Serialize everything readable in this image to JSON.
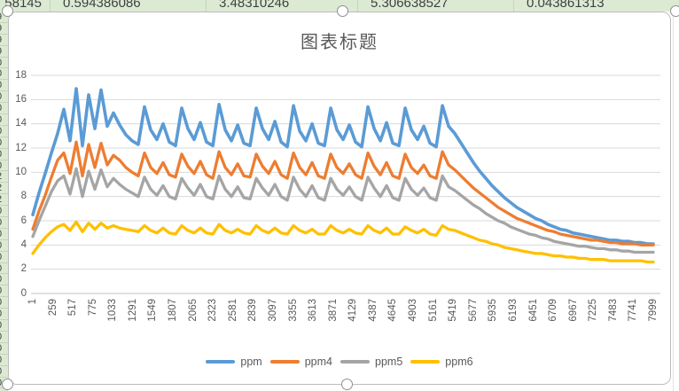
{
  "spreadsheet": {
    "top_row_cells": [
      "58145",
      "0.594386086",
      "3.48310246",
      "5.306638527",
      "0.043861313"
    ],
    "left_column_digits": [
      "9",
      "9",
      "9",
      "9",
      "0",
      "0",
      "0",
      "0",
      "0",
      "0",
      "0",
      "0",
      "0",
      "0",
      "2",
      "2",
      "2",
      "0",
      "0",
      "0",
      "0",
      "0",
      "0",
      "0",
      "0",
      "0",
      "0",
      "0",
      "0",
      "0",
      "0",
      "0",
      "0"
    ]
  },
  "chart_data": {
    "type": "line",
    "title": "图表标题",
    "xlabel": "",
    "ylabel": "",
    "xlim": [
      1,
      7999
    ],
    "ylim": [
      0,
      18
    ],
    "grid": true,
    "legend_position": "bottom",
    "y_ticks": [
      0,
      2,
      4,
      6,
      8,
      10,
      12,
      14,
      16,
      18
    ],
    "x_tick_labels": [
      "1",
      "259",
      "517",
      "775",
      "1033",
      "1291",
      "1549",
      "1807",
      "2065",
      "2323",
      "2581",
      "2839",
      "3097",
      "3355",
      "3613",
      "3871",
      "4129",
      "4387",
      "4645",
      "4903",
      "5161",
      "5419",
      "5677",
      "5935",
      "6193",
      "6451",
      "6709",
      "6967",
      "7225",
      "7483",
      "7741",
      "7999"
    ],
    "x": [
      1,
      81,
      161,
      241,
      321,
      401,
      481,
      561,
      641,
      721,
      801,
      881,
      961,
      1041,
      1121,
      1201,
      1281,
      1361,
      1441,
      1521,
      1601,
      1681,
      1761,
      1841,
      1921,
      2001,
      2081,
      2161,
      2241,
      2321,
      2401,
      2481,
      2561,
      2641,
      2721,
      2801,
      2881,
      2961,
      3041,
      3121,
      3201,
      3281,
      3361,
      3441,
      3521,
      3601,
      3681,
      3761,
      3841,
      3921,
      4001,
      4081,
      4161,
      4241,
      4321,
      4401,
      4481,
      4561,
      4641,
      4721,
      4801,
      4881,
      4961,
      5041,
      5121,
      5201,
      5281,
      5361,
      5441,
      5521,
      5601,
      5681,
      5761,
      5841,
      5921,
      6001,
      6081,
      6161,
      6241,
      6321,
      6401,
      6481,
      6561,
      6641,
      6721,
      6801,
      6881,
      6961,
      7041,
      7121,
      7201,
      7281,
      7361,
      7441,
      7521,
      7601,
      7681,
      7761,
      7841,
      7921,
      7999
    ],
    "series": [
      {
        "name": "ppm",
        "color": "#5B9BD5",
        "values": [
          6.5,
          8.3,
          9.9,
          11.6,
          13.2,
          15.2,
          12.6,
          16.9,
          12.2,
          16.4,
          13.6,
          16.8,
          13.8,
          14.9,
          13.9,
          13.1,
          12.6,
          12.3,
          15.4,
          13.5,
          12.7,
          14.0,
          12.5,
          12.2,
          15.3,
          13.6,
          12.7,
          14.1,
          12.5,
          12.2,
          15.6,
          13.5,
          12.6,
          13.9,
          12.4,
          12.2,
          15.3,
          13.6,
          12.7,
          14.2,
          12.5,
          12.1,
          15.5,
          13.4,
          12.6,
          14.0,
          12.4,
          12.2,
          15.3,
          13.5,
          12.7,
          13.9,
          12.5,
          12.1,
          15.4,
          13.6,
          12.6,
          14.1,
          12.4,
          12.2,
          15.3,
          13.5,
          12.7,
          13.8,
          12.4,
          12.1,
          15.5,
          13.8,
          13.2,
          12.4,
          11.6,
          10.8,
          10.1,
          9.5,
          8.9,
          8.4,
          7.9,
          7.5,
          7.1,
          6.8,
          6.5,
          6.2,
          6.0,
          5.7,
          5.5,
          5.3,
          5.2,
          5.0,
          4.9,
          4.8,
          4.7,
          4.6,
          4.5,
          4.4,
          4.4,
          4.3,
          4.3,
          4.2,
          4.2,
          4.1,
          4.1
        ]
      },
      {
        "name": "ppm4",
        "color": "#ED7D31",
        "values": [
          5.3,
          6.8,
          8.1,
          9.6,
          11.0,
          11.6,
          9.9,
          12.5,
          9.7,
          12.3,
          10.4,
          12.4,
          10.6,
          11.4,
          11.0,
          10.4,
          10.0,
          9.7,
          11.6,
          10.4,
          9.9,
          10.8,
          9.8,
          9.6,
          11.5,
          10.5,
          9.9,
          10.9,
          9.8,
          9.5,
          11.7,
          10.4,
          9.8,
          10.7,
          9.7,
          9.6,
          11.5,
          10.5,
          9.9,
          10.9,
          9.8,
          9.5,
          11.6,
          10.4,
          9.8,
          10.8,
          9.7,
          9.5,
          11.5,
          10.4,
          9.9,
          10.7,
          9.8,
          9.5,
          11.6,
          10.5,
          9.8,
          10.8,
          9.7,
          9.5,
          11.5,
          10.4,
          9.9,
          10.6,
          9.7,
          9.5,
          11.7,
          10.6,
          10.2,
          9.7,
          9.2,
          8.7,
          8.3,
          7.9,
          7.5,
          7.1,
          6.8,
          6.5,
          6.2,
          6.0,
          5.8,
          5.6,
          5.4,
          5.2,
          5.1,
          4.9,
          4.8,
          4.7,
          4.6,
          4.5,
          4.4,
          4.4,
          4.3,
          4.2,
          4.2,
          4.1,
          4.1,
          4.1,
          4.0,
          4.0,
          4.0
        ]
      },
      {
        "name": "ppm5",
        "color": "#A5A5A5",
        "values": [
          4.7,
          6.0,
          7.2,
          8.4,
          9.3,
          9.7,
          8.2,
          10.3,
          8.0,
          10.1,
          8.6,
          10.2,
          8.8,
          9.5,
          9.0,
          8.6,
          8.3,
          8.0,
          9.6,
          8.6,
          8.1,
          8.9,
          8.0,
          7.8,
          9.5,
          8.7,
          8.1,
          9.0,
          8.0,
          7.8,
          9.7,
          8.6,
          8.0,
          8.8,
          7.9,
          7.8,
          9.5,
          8.7,
          8.1,
          9.0,
          8.0,
          7.7,
          9.6,
          8.6,
          8.0,
          8.9,
          7.9,
          7.7,
          9.5,
          8.6,
          8.1,
          8.8,
          8.0,
          7.7,
          9.6,
          8.7,
          8.0,
          8.9,
          7.9,
          7.7,
          9.5,
          8.6,
          8.1,
          8.7,
          7.9,
          7.7,
          9.7,
          8.8,
          8.5,
          8.1,
          7.7,
          7.3,
          7.0,
          6.6,
          6.3,
          6.0,
          5.8,
          5.5,
          5.3,
          5.1,
          4.9,
          4.8,
          4.6,
          4.5,
          4.3,
          4.2,
          4.1,
          4.0,
          3.9,
          3.9,
          3.8,
          3.7,
          3.7,
          3.6,
          3.6,
          3.5,
          3.5,
          3.4,
          3.4,
          3.4,
          3.4
        ]
      },
      {
        "name": "ppm6",
        "color": "#FFC000",
        "values": [
          3.3,
          4.0,
          4.6,
          5.1,
          5.5,
          5.7,
          5.2,
          5.9,
          5.1,
          5.8,
          5.3,
          5.8,
          5.4,
          5.6,
          5.4,
          5.3,
          5.2,
          5.1,
          5.6,
          5.2,
          5.0,
          5.4,
          5.0,
          4.9,
          5.6,
          5.2,
          5.0,
          5.4,
          5.0,
          4.9,
          5.7,
          5.2,
          5.0,
          5.3,
          5.0,
          4.9,
          5.6,
          5.2,
          5.0,
          5.4,
          5.0,
          4.9,
          5.6,
          5.2,
          5.0,
          5.3,
          4.9,
          4.9,
          5.6,
          5.2,
          5.0,
          5.3,
          5.0,
          4.9,
          5.6,
          5.2,
          5.0,
          5.4,
          4.9,
          4.9,
          5.5,
          5.2,
          5.0,
          5.3,
          4.9,
          4.8,
          5.6,
          5.3,
          5.2,
          5.0,
          4.8,
          4.6,
          4.4,
          4.3,
          4.1,
          4.0,
          3.8,
          3.7,
          3.6,
          3.5,
          3.4,
          3.3,
          3.3,
          3.2,
          3.1,
          3.1,
          3.0,
          3.0,
          2.9,
          2.9,
          2.8,
          2.8,
          2.8,
          2.7,
          2.7,
          2.7,
          2.7,
          2.7,
          2.7,
          2.6,
          2.6
        ]
      }
    ],
    "style": {
      "grid_color": "#d9d9d9",
      "axis_color": "#c0c0c0",
      "tick_text_color": "#595959",
      "title_color": "#595959"
    }
  }
}
